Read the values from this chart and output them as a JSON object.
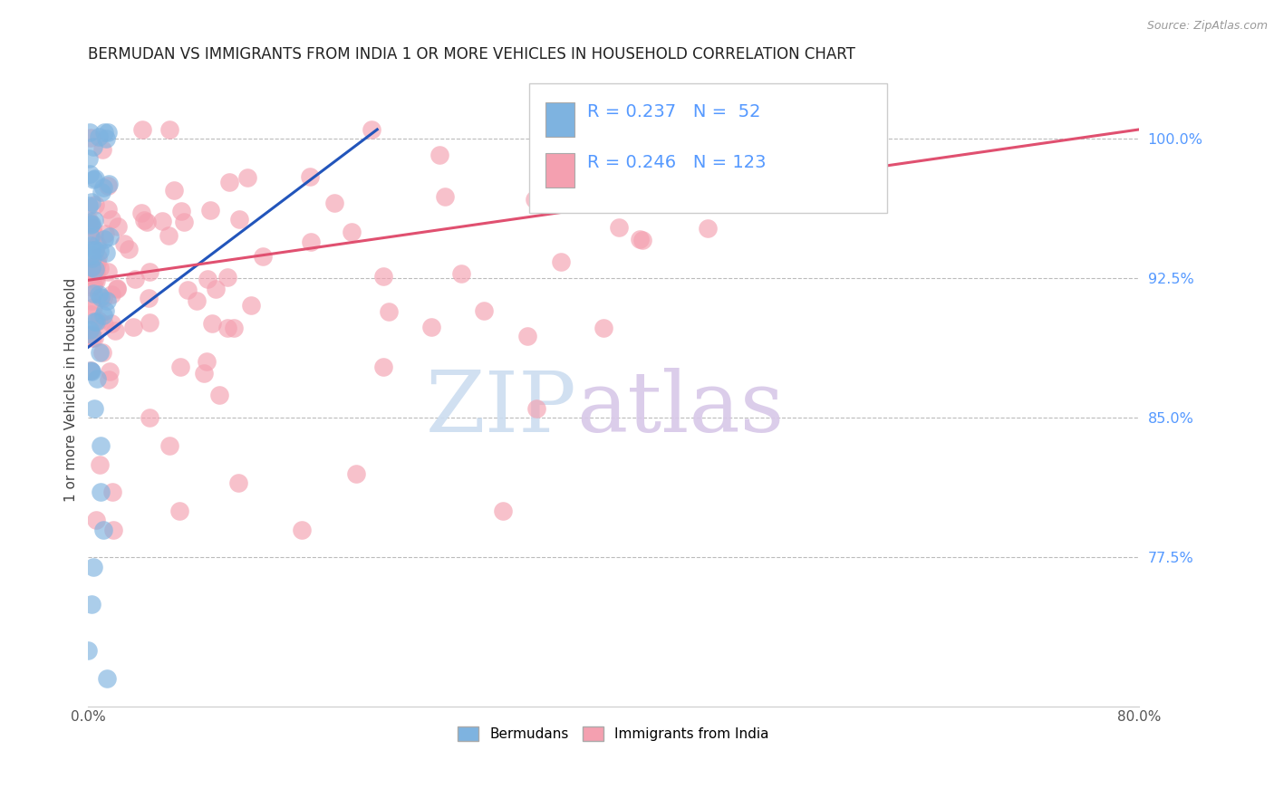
{
  "title": "BERMUDAN VS IMMIGRANTS FROM INDIA 1 OR MORE VEHICLES IN HOUSEHOLD CORRELATION CHART",
  "source": "Source: ZipAtlas.com",
  "ylabel": "1 or more Vehicles in Household",
  "xlim": [
    0.0,
    0.8
  ],
  "ylim": [
    0.695,
    1.035
  ],
  "yticks": [
    0.775,
    0.85,
    0.925,
    1.0
  ],
  "ytick_labels": [
    "77.5%",
    "85.0%",
    "92.5%",
    "100.0%"
  ],
  "bermudan_color": "#7EB3E0",
  "india_color": "#F4A0B0",
  "bermudan_line_color": "#2255BB",
  "india_line_color": "#E05070",
  "R_bermudan": 0.237,
  "N_bermudan": 52,
  "R_india": 0.246,
  "N_india": 123,
  "legend_labels": [
    "Bermudans",
    "Immigrants from India"
  ],
  "watermark_zip": "ZIP",
  "watermark_atlas": "atlas",
  "background_color": "#ffffff",
  "grid_color": "#bbbbbb",
  "title_color": "#222222",
  "axis_label_color": "#444444",
  "right_axis_color": "#5599FF",
  "source_color": "#999999",
  "bermudan_line_x0": 0.0,
  "bermudan_line_y0": 0.888,
  "bermudan_line_x1": 0.22,
  "bermudan_line_y1": 1.005,
  "india_line_x0": 0.0,
  "india_line_y0": 0.924,
  "india_line_x1": 0.8,
  "india_line_y1": 1.005
}
